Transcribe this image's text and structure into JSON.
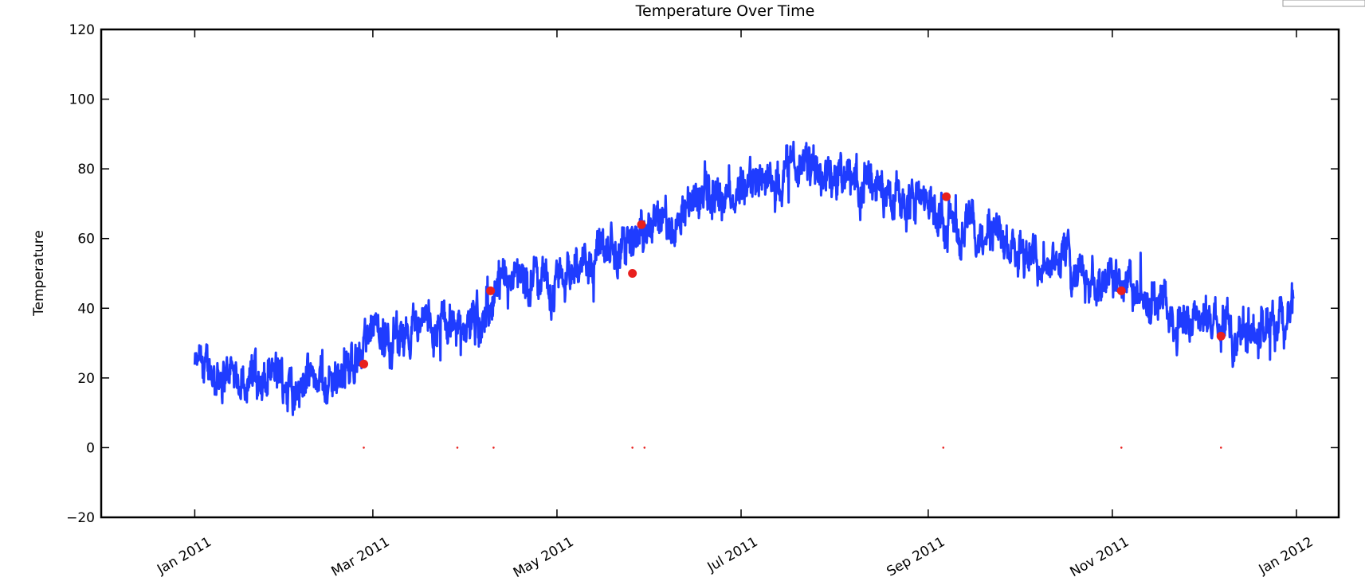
{
  "chart_data": {
    "type": "line",
    "title": "Temperature Over Time",
    "xlabel": "",
    "ylabel": "Temperature",
    "xlim": [
      "2010-12-01",
      "2012-01-15"
    ],
    "ylim": [
      -20,
      120
    ],
    "grid": false,
    "y_ticks": [
      -20,
      0,
      20,
      40,
      60,
      80,
      100,
      120
    ],
    "x_ticks": [
      {
        "date": "2011-01-01",
        "label": "Jan 2011"
      },
      {
        "date": "2011-03-01",
        "label": "Mar 2011"
      },
      {
        "date": "2011-05-01",
        "label": "May 2011"
      },
      {
        "date": "2011-07-01",
        "label": "Jul 2011"
      },
      {
        "date": "2011-09-01",
        "label": "Sep 2011"
      },
      {
        "date": "2011-11-01",
        "label": "Nov 2011"
      },
      {
        "date": "2012-01-01",
        "label": "Jan 2012"
      }
    ],
    "series": [
      {
        "name": "",
        "color": "#1f3cff",
        "style": "line",
        "trend": [
          [
            "2011-01-01",
            22
          ],
          [
            "2011-01-15",
            21
          ],
          [
            "2011-02-01",
            18
          ],
          [
            "2011-02-15",
            20
          ],
          [
            "2011-03-01",
            30
          ],
          [
            "2011-03-15",
            36
          ],
          [
            "2011-04-01",
            35
          ],
          [
            "2011-04-15",
            44
          ],
          [
            "2011-05-01",
            48
          ],
          [
            "2011-05-15",
            56
          ],
          [
            "2011-06-01",
            62
          ],
          [
            "2011-06-15",
            70
          ],
          [
            "2011-07-01",
            76
          ],
          [
            "2011-07-15",
            79
          ],
          [
            "2011-08-01",
            79
          ],
          [
            "2011-08-15",
            75
          ],
          [
            "2011-09-01",
            70
          ],
          [
            "2011-09-15",
            63
          ],
          [
            "2011-10-01",
            58
          ],
          [
            "2011-10-15",
            55
          ],
          [
            "2011-11-01",
            46
          ],
          [
            "2011-11-15",
            40
          ],
          [
            "2011-12-01",
            36
          ],
          [
            "2011-12-15",
            35
          ],
          [
            "2011-12-31",
            36
          ]
        ],
        "amplitude": 7,
        "range": [
          "2011-01-01",
          "2011-12-31"
        ]
      },
      {
        "name": "",
        "color": "#e8201e",
        "style": "markers",
        "points": [
          [
            "2011-02-26",
            24
          ],
          [
            "2011-04-09",
            45
          ],
          [
            "2011-05-26",
            50
          ],
          [
            "2011-05-29",
            64
          ],
          [
            "2011-09-07",
            72
          ],
          [
            "2011-11-04",
            45
          ],
          [
            "2011-12-07",
            32
          ]
        ]
      },
      {
        "name": "",
        "color": "#e8201e",
        "style": "dots",
        "points": [
          [
            "2011-02-26",
            0
          ],
          [
            "2011-03-29",
            0
          ],
          [
            "2011-04-10",
            0
          ],
          [
            "2011-05-26",
            0
          ],
          [
            "2011-05-30",
            0
          ],
          [
            "2011-09-06",
            0
          ],
          [
            "2011-11-04",
            0
          ],
          [
            "2011-12-07",
            0
          ]
        ]
      }
    ]
  }
}
